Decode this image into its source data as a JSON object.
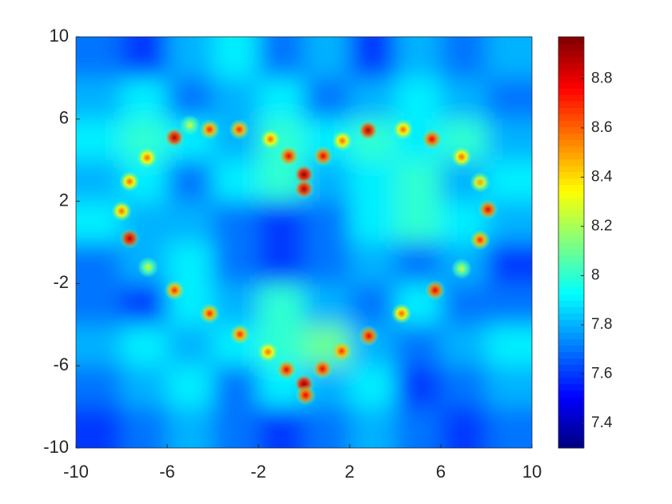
{
  "chart_data": {
    "type": "heatmap",
    "colormap": "jet",
    "xlim": [
      -10,
      10
    ],
    "ylim": [
      -10,
      10
    ],
    "xticks": [
      -10,
      -6,
      -2,
      2,
      6,
      10
    ],
    "yticks": [
      -10,
      -6,
      -2,
      2,
      6,
      10
    ],
    "clim": [
      7.3,
      8.97
    ],
    "colorbar_ticks": [
      7.4,
      7.6,
      7.8,
      8,
      8.2,
      8.4,
      8.6,
      8.8
    ],
    "z": [
      [
        7.7,
        7.6,
        7.8,
        7.9,
        7.7,
        7.8,
        7.6,
        7.8,
        7.7,
        7.8
      ],
      [
        7.8,
        7.9,
        7.7,
        7.8,
        7.9,
        7.7,
        7.8,
        7.9,
        7.8,
        7.7
      ],
      [
        7.9,
        8.0,
        7.9,
        7.8,
        8.0,
        7.9,
        8.0,
        7.9,
        8.0,
        7.8
      ],
      [
        7.8,
        7.9,
        7.7,
        7.9,
        8.0,
        7.8,
        7.9,
        8.0,
        7.8,
        7.9
      ],
      [
        7.9,
        7.8,
        7.8,
        7.7,
        7.6,
        7.7,
        7.9,
        8.0,
        7.9,
        7.8
      ],
      [
        7.7,
        7.8,
        7.9,
        7.7,
        7.6,
        7.7,
        7.8,
        7.7,
        7.8,
        7.6
      ],
      [
        7.7,
        7.6,
        7.9,
        7.8,
        8.0,
        7.8,
        7.7,
        7.9,
        7.7,
        7.7
      ],
      [
        7.8,
        7.9,
        7.8,
        7.9,
        8.0,
        8.1,
        7.8,
        7.7,
        7.8,
        7.9
      ],
      [
        7.7,
        7.8,
        7.9,
        7.7,
        7.9,
        7.8,
        7.9,
        7.6,
        7.7,
        7.8
      ],
      [
        7.6,
        7.7,
        7.8,
        7.7,
        7.6,
        7.7,
        7.8,
        7.7,
        7.6,
        7.7
      ]
    ],
    "peaks": {
      "x": [
        -5.68,
        -4.14,
        -2.84,
        -1.47,
        -0.67,
        0,
        0,
        0.84,
        1.68,
        2.81,
        4.35,
        5.61,
        6.91,
        7.72,
        8.07,
        7.72,
        6.91,
        5.75,
        4.28,
        2.84,
        1.65,
        0.81,
        0,
        0.07,
        -0.77,
        -1.58,
        -2.81,
        -4.14,
        -5.68,
        -6.84,
        -7.65,
        -8.0,
        -7.65,
        -6.88,
        -5.0
      ],
      "y": [
        5.1,
        5.49,
        5.49,
        5.02,
        4.2,
        3.3,
        2.6,
        4.2,
        4.94,
        5.45,
        5.49,
        5.02,
        4.16,
        2.92,
        1.6,
        0.12,
        -1.28,
        -2.33,
        -3.46,
        -4.55,
        -5.29,
        -6.15,
        -6.89,
        -7.43,
        -6.19,
        -5.33,
        -4.47,
        -3.46,
        -2.33,
        -1.21,
        0.19,
        1.52,
        2.96,
        4.12,
        5.7
      ],
      "values": [
        8.9,
        8.7,
        8.7,
        8.6,
        8.8,
        8.95,
        8.9,
        8.8,
        8.6,
        8.9,
        8.6,
        8.8,
        8.6,
        8.5,
        8.8,
        8.7,
        8.3,
        8.8,
        8.6,
        8.8,
        8.7,
        8.8,
        8.95,
        8.8,
        8.8,
        8.6,
        8.7,
        8.7,
        8.7,
        8.3,
        8.9,
        8.6,
        8.6,
        8.6,
        8.3
      ]
    }
  }
}
